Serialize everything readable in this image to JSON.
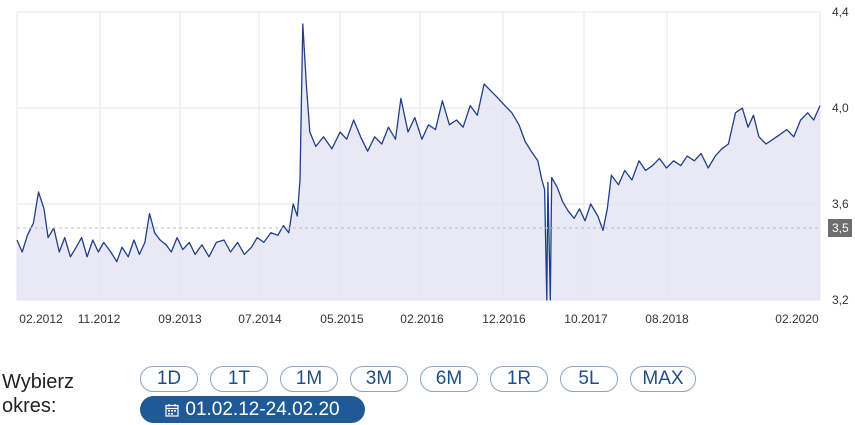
{
  "chart_data": {
    "type": "area",
    "x_tick_labels": [
      "02.2012",
      "11.2012",
      "09.2013",
      "07.2014",
      "05.2015",
      "02.2016",
      "12.2016",
      "10.2017",
      "08.2018",
      "02.2020"
    ],
    "y_tick_labels": [
      "4,4",
      "4,0",
      "3,6",
      "3,2"
    ],
    "ylim": [
      3.2,
      4.4
    ],
    "xlim": [
      "2012-02-01",
      "2020-02-24"
    ],
    "reference_line": {
      "value": 3.5,
      "label": "3,5"
    },
    "grid": true,
    "series": [
      {
        "points": [
          [
            "2012-02-01",
            3.45
          ],
          [
            "2012-02-20",
            3.4
          ],
          [
            "2012-03-10",
            3.47
          ],
          [
            "2012-04-01",
            3.52
          ],
          [
            "2012-04-20",
            3.65
          ],
          [
            "2012-05-10",
            3.58
          ],
          [
            "2012-05-25",
            3.46
          ],
          [
            "2012-06-15",
            3.5
          ],
          [
            "2012-07-05",
            3.4
          ],
          [
            "2012-07-25",
            3.46
          ],
          [
            "2012-08-15",
            3.38
          ],
          [
            "2012-09-05",
            3.42
          ],
          [
            "2012-09-25",
            3.46
          ],
          [
            "2012-10-15",
            3.38
          ],
          [
            "2012-11-05",
            3.45
          ],
          [
            "2012-11-25",
            3.4
          ],
          [
            "2012-12-15",
            3.44
          ],
          [
            "2013-01-10",
            3.4
          ],
          [
            "2013-02-01",
            3.36
          ],
          [
            "2013-02-20",
            3.42
          ],
          [
            "2013-03-15",
            3.38
          ],
          [
            "2013-04-05",
            3.45
          ],
          [
            "2013-04-25",
            3.39
          ],
          [
            "2013-05-15",
            3.44
          ],
          [
            "2013-06-01",
            3.56
          ],
          [
            "2013-06-20",
            3.48
          ],
          [
            "2013-07-10",
            3.45
          ],
          [
            "2013-08-01",
            3.43
          ],
          [
            "2013-08-20",
            3.4
          ],
          [
            "2013-09-10",
            3.46
          ],
          [
            "2013-10-01",
            3.41
          ],
          [
            "2013-10-25",
            3.44
          ],
          [
            "2013-11-15",
            3.39
          ],
          [
            "2013-12-10",
            3.43
          ],
          [
            "2014-01-05",
            3.38
          ],
          [
            "2014-02-01",
            3.44
          ],
          [
            "2014-03-01",
            3.45
          ],
          [
            "2014-03-25",
            3.4
          ],
          [
            "2014-04-20",
            3.44
          ],
          [
            "2014-05-15",
            3.39
          ],
          [
            "2014-06-10",
            3.42
          ],
          [
            "2014-07-01",
            3.46
          ],
          [
            "2014-07-25",
            3.44
          ],
          [
            "2014-08-20",
            3.48
          ],
          [
            "2014-09-15",
            3.47
          ],
          [
            "2014-10-05",
            3.51
          ],
          [
            "2014-10-25",
            3.48
          ],
          [
            "2014-11-10",
            3.6
          ],
          [
            "2014-11-25",
            3.55
          ],
          [
            "2014-12-05",
            3.7
          ],
          [
            "2014-12-15",
            4.35
          ],
          [
            "2014-12-28",
            4.1
          ],
          [
            "2015-01-10",
            3.9
          ],
          [
            "2015-02-01",
            3.84
          ],
          [
            "2015-03-01",
            3.88
          ],
          [
            "2015-04-01",
            3.83
          ],
          [
            "2015-05-01",
            3.9
          ],
          [
            "2015-05-25",
            3.87
          ],
          [
            "2015-06-20",
            3.95
          ],
          [
            "2015-07-15",
            3.88
          ],
          [
            "2015-08-10",
            3.82
          ],
          [
            "2015-09-05",
            3.88
          ],
          [
            "2015-10-01",
            3.85
          ],
          [
            "2015-10-25",
            3.92
          ],
          [
            "2015-11-20",
            3.87
          ],
          [
            "2015-12-10",
            4.04
          ],
          [
            "2016-01-05",
            3.9
          ],
          [
            "2016-01-30",
            3.96
          ],
          [
            "2016-02-25",
            3.87
          ],
          [
            "2016-03-20",
            3.93
          ],
          [
            "2016-04-15",
            3.91
          ],
          [
            "2016-05-10",
            4.03
          ],
          [
            "2016-06-05",
            3.93
          ],
          [
            "2016-07-01",
            3.95
          ],
          [
            "2016-07-25",
            3.92
          ],
          [
            "2016-08-20",
            4.01
          ],
          [
            "2016-09-15",
            3.97
          ],
          [
            "2016-10-10",
            4.1
          ],
          [
            "2016-11-05",
            4.07
          ],
          [
            "2016-12-01",
            4.04
          ],
          [
            "2016-12-25",
            4.01
          ],
          [
            "2017-01-20",
            3.98
          ],
          [
            "2017-02-15",
            3.93
          ],
          [
            "2017-03-10",
            3.86
          ],
          [
            "2017-04-01",
            3.82
          ],
          [
            "2017-04-25",
            3.78
          ],
          [
            "2017-05-10",
            3.7
          ],
          [
            "2017-05-20",
            3.66
          ],
          [
            "2017-05-28",
            3.2
          ],
          [
            "2017-06-01",
            3.69
          ],
          [
            "2017-06-10",
            3.2
          ],
          [
            "2017-06-15",
            3.71
          ],
          [
            "2017-07-05",
            3.67
          ],
          [
            "2017-07-25",
            3.61
          ],
          [
            "2017-08-15",
            3.57
          ],
          [
            "2017-09-05",
            3.54
          ],
          [
            "2017-09-25",
            3.58
          ],
          [
            "2017-10-15",
            3.53
          ],
          [
            "2017-11-05",
            3.6
          ],
          [
            "2017-12-01",
            3.55
          ],
          [
            "2017-12-20",
            3.49
          ],
          [
            "2018-01-05",
            3.58
          ],
          [
            "2018-01-20",
            3.72
          ],
          [
            "2018-02-15",
            3.68
          ],
          [
            "2018-03-10",
            3.74
          ],
          [
            "2018-04-05",
            3.7
          ],
          [
            "2018-05-01",
            3.78
          ],
          [
            "2018-05-25",
            3.74
          ],
          [
            "2018-06-20",
            3.76
          ],
          [
            "2018-07-15",
            3.79
          ],
          [
            "2018-08-10",
            3.75
          ],
          [
            "2018-09-05",
            3.78
          ],
          [
            "2018-10-01",
            3.76
          ],
          [
            "2018-10-25",
            3.8
          ],
          [
            "2018-11-20",
            3.78
          ],
          [
            "2018-12-15",
            3.81
          ],
          [
            "2019-01-10",
            3.75
          ],
          [
            "2019-02-05",
            3.8
          ],
          [
            "2019-03-01",
            3.83
          ],
          [
            "2019-03-25",
            3.85
          ],
          [
            "2019-04-20",
            3.98
          ],
          [
            "2019-05-15",
            4.0
          ],
          [
            "2019-06-05",
            3.92
          ],
          [
            "2019-06-25",
            3.97
          ],
          [
            "2019-07-15",
            3.88
          ],
          [
            "2019-08-10",
            3.85
          ],
          [
            "2019-09-05",
            3.87
          ],
          [
            "2019-10-01",
            3.89
          ],
          [
            "2019-10-25",
            3.91
          ],
          [
            "2019-11-20",
            3.88
          ],
          [
            "2019-12-15",
            3.95
          ],
          [
            "2020-01-10",
            3.98
          ],
          [
            "2020-02-01",
            3.95
          ],
          [
            "2020-02-24",
            4.01
          ]
        ]
      }
    ]
  },
  "controls": {
    "period_label": "Wybierz okres:",
    "ranges": [
      "1D",
      "1T",
      "1M",
      "3M",
      "6M",
      "1R",
      "5L",
      "MAX"
    ],
    "date_range": "01.02.12-24.02.20"
  },
  "colors": {
    "line": "#1f3f8a",
    "fill": "#e3e4f4",
    "grid": "#e6e6e6",
    "ref_line": "#bdbdbd",
    "ref_label_bg": "#6e6e6e",
    "button_border": "#8aa4c6",
    "button_text": "#1f4e86",
    "pill_bg": "#1f5a96"
  },
  "icons": {
    "date_range": "calendar-icon"
  }
}
